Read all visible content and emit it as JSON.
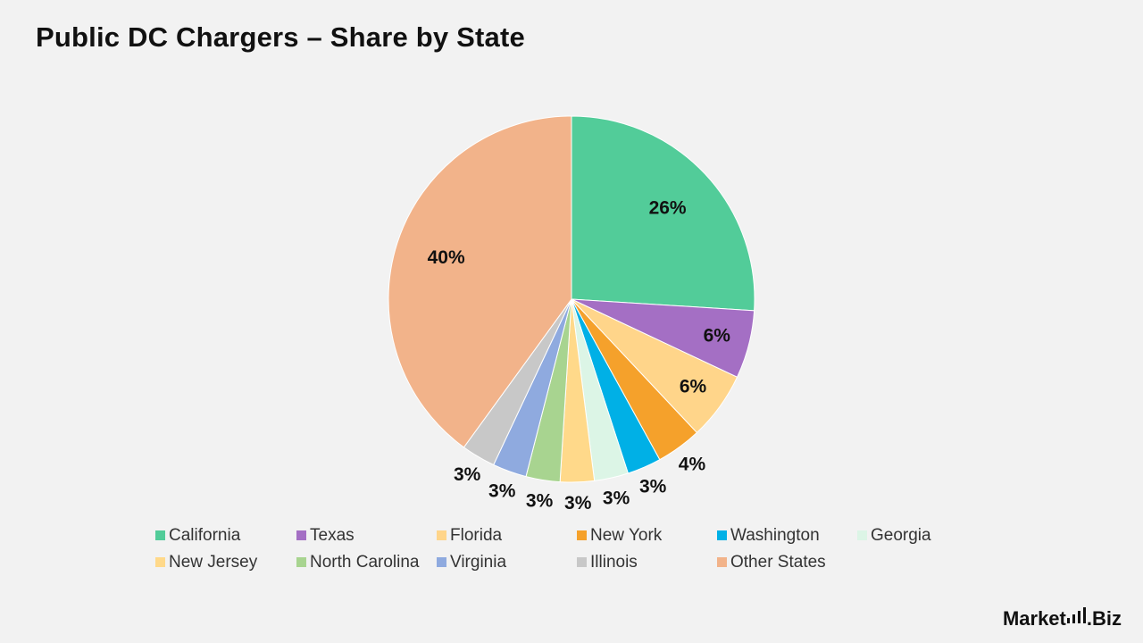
{
  "title": "Public DC Chargers – Share by State",
  "brand": {
    "text_left": "Market",
    "text_right": ".Biz"
  },
  "chart_data": {
    "type": "pie",
    "title": "Public DC Chargers – Share by State",
    "start_angle_deg": 0,
    "direction": "clockwise",
    "legend_position": "bottom",
    "slices": [
      {
        "label": "California",
        "value": 26,
        "display": "26%",
        "color": "#52cc99"
      },
      {
        "label": "Texas",
        "value": 6,
        "display": "6%",
        "color": "#a46fc4"
      },
      {
        "label": "Florida",
        "value": 6,
        "display": "6%",
        "color": "#ffd58a"
      },
      {
        "label": "New York",
        "value": 4,
        "display": "4%",
        "color": "#f5a12b"
      },
      {
        "label": "Washington",
        "value": 3,
        "display": "3%",
        "color": "#00b0e6"
      },
      {
        "label": "Georgia",
        "value": 3,
        "display": "3%",
        "color": "#dcf5e6"
      },
      {
        "label": "New Jersey",
        "value": 3,
        "display": "3%",
        "color": "#ffd98a"
      },
      {
        "label": "North Carolina",
        "value": 3,
        "display": "3%",
        "color": "#a8d490"
      },
      {
        "label": "Virginia",
        "value": 3,
        "display": "3%",
        "color": "#8faadf"
      },
      {
        "label": "Illinois",
        "value": 3,
        "display": "3%",
        "color": "#c8c8c8"
      },
      {
        "label": "Other States",
        "value": 40,
        "display": "40%",
        "color": "#f2b38a"
      }
    ]
  }
}
